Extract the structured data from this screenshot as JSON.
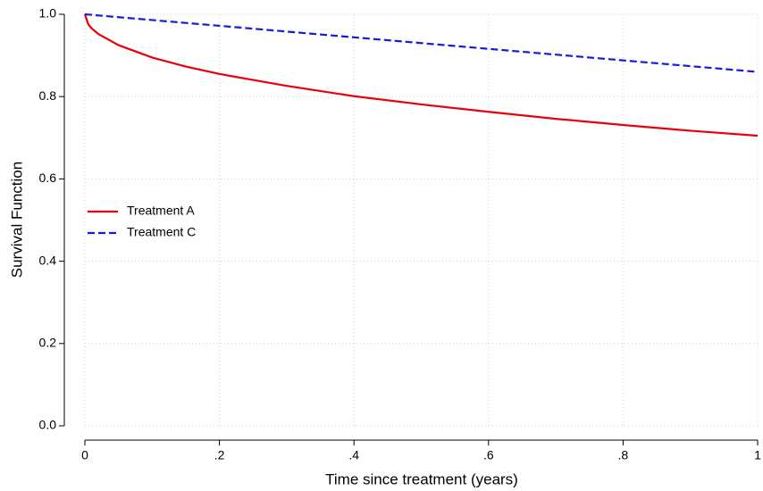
{
  "chart_data": {
    "type": "line",
    "xlabel": "Time since treatment (years)",
    "ylabel": "Survival Function",
    "x": [
      0,
      0.005,
      0.01,
      0.02,
      0.05,
      0.1,
      0.15,
      0.2,
      0.3,
      0.4,
      0.5,
      0.6,
      0.7,
      0.8,
      0.9,
      1.0
    ],
    "series": [
      {
        "name": "Treatment A",
        "color": "#e8000b",
        "dash": "solid",
        "values": [
          1.0,
          0.976,
          0.966,
          0.952,
          0.925,
          0.895,
          0.873,
          0.855,
          0.826,
          0.801,
          0.781,
          0.763,
          0.746,
          0.731,
          0.717,
          0.705
        ]
      },
      {
        "name": "Treatment C",
        "color": "#1a1adb",
        "dash": "dashed",
        "values": [
          1.0,
          0.9993,
          0.9986,
          0.9972,
          0.993,
          0.986,
          0.979,
          0.972,
          0.958,
          0.944,
          0.93,
          0.916,
          0.902,
          0.888,
          0.874,
          0.86
        ]
      }
    ],
    "xlim": [
      0,
      1
    ],
    "ylim": [
      0,
      1
    ],
    "xticks": [
      0,
      {
        "value": 0.2,
        "label": ".2"
      },
      {
        "value": 0.4,
        "label": ".4"
      },
      {
        "value": 0.6,
        "label": ".6"
      },
      {
        "value": 0.8,
        "label": ".8"
      },
      1
    ],
    "yticks": [
      {
        "value": 0,
        "label": "0.0"
      },
      0.2,
      0.4,
      0.6,
      0.8,
      {
        "value": 1,
        "label": "1.0"
      }
    ],
    "grid": true,
    "legend": "left"
  }
}
